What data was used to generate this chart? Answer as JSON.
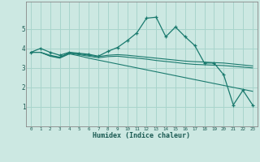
{
  "xlabel": "Humidex (Indice chaleur)",
  "background_color": "#cce8e2",
  "grid_color": "#a8d4cc",
  "line_color": "#1a7a6e",
  "xlim": [
    -0.5,
    23.5
  ],
  "ylim": [
    0,
    6.4
  ],
  "xticks": [
    0,
    1,
    2,
    3,
    4,
    5,
    6,
    7,
    8,
    9,
    10,
    11,
    12,
    13,
    14,
    15,
    16,
    17,
    18,
    19,
    20,
    21,
    22,
    23
  ],
  "yticks": [
    1,
    2,
    3,
    4,
    5
  ],
  "lines": [
    {
      "x": [
        0,
        1,
        2,
        3,
        4,
        5,
        6,
        7,
        8,
        9,
        10,
        11,
        12,
        13,
        14,
        15,
        16,
        17,
        18,
        19,
        20,
        21,
        22,
        23
      ],
      "y": [
        3.8,
        4.0,
        3.8,
        3.65,
        3.8,
        3.75,
        3.7,
        3.6,
        3.85,
        4.05,
        4.4,
        4.8,
        5.55,
        5.6,
        4.6,
        5.1,
        4.6,
        4.15,
        3.25,
        3.25,
        2.65,
        1.1,
        1.85,
        1.1
      ],
      "marker": true
    },
    {
      "x": [
        0,
        1,
        2,
        3,
        4,
        5,
        6,
        7,
        8,
        9,
        10,
        11,
        12,
        13,
        14,
        15,
        16,
        17,
        18,
        19,
        20,
        21,
        22,
        23
      ],
      "y": [
        3.8,
        3.8,
        3.65,
        3.55,
        3.78,
        3.72,
        3.65,
        3.58,
        3.65,
        3.68,
        3.65,
        3.6,
        3.55,
        3.5,
        3.45,
        3.4,
        3.35,
        3.32,
        3.3,
        3.27,
        3.25,
        3.2,
        3.15,
        3.1
      ],
      "marker": false
    },
    {
      "x": [
        0,
        1,
        2,
        3,
        4,
        5,
        6,
        7,
        8,
        9,
        10,
        11,
        12,
        13,
        14,
        15,
        16,
        17,
        18,
        19,
        20,
        21,
        22,
        23
      ],
      "y": [
        3.8,
        3.8,
        3.62,
        3.52,
        3.75,
        3.68,
        3.6,
        3.52,
        3.58,
        3.6,
        3.55,
        3.5,
        3.45,
        3.38,
        3.33,
        3.28,
        3.22,
        3.18,
        3.16,
        3.14,
        3.12,
        3.08,
        3.04,
        3.0
      ],
      "marker": false
    },
    {
      "x": [
        0,
        1,
        2,
        3,
        4,
        5,
        6,
        7,
        8,
        9,
        10,
        11,
        12,
        13,
        14,
        15,
        16,
        17,
        18,
        19,
        20,
        21,
        22,
        23
      ],
      "y": [
        3.8,
        3.8,
        3.6,
        3.5,
        3.72,
        3.62,
        3.5,
        3.4,
        3.3,
        3.2,
        3.1,
        3.0,
        2.9,
        2.8,
        2.7,
        2.6,
        2.5,
        2.4,
        2.3,
        2.2,
        2.1,
        2.0,
        1.9,
        1.8
      ],
      "marker": false
    }
  ]
}
